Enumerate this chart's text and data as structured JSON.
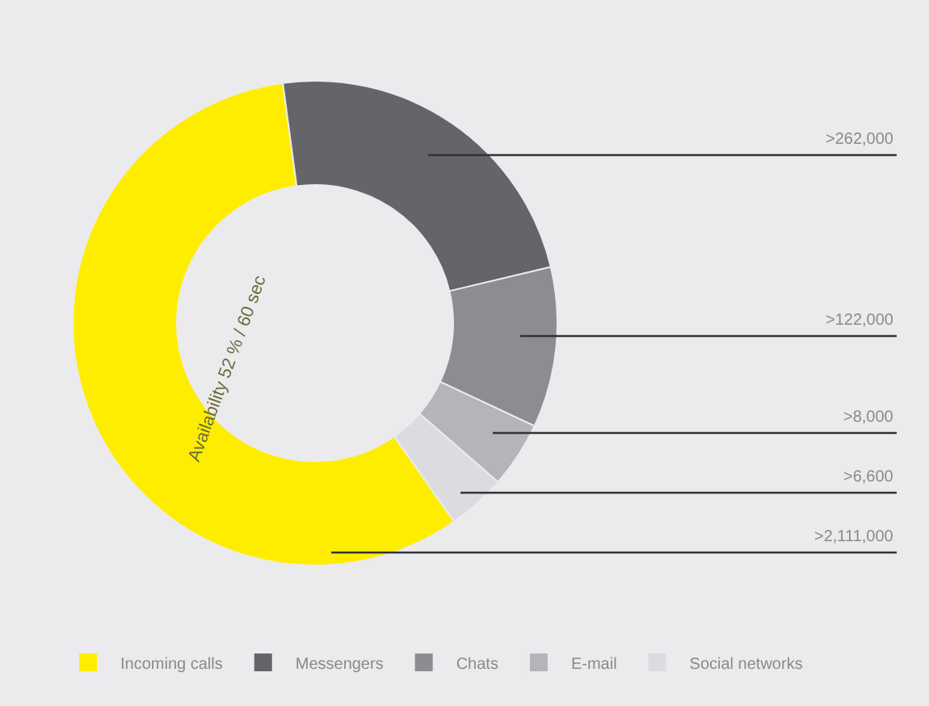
{
  "chart_data": {
    "type": "donut",
    "categories": [
      "Incoming calls",
      "Messengers",
      "Chats",
      "E-mail",
      "Social networks"
    ],
    "values": [
      57.6,
      23.4,
      10.7,
      4.4,
      3.9
    ],
    "colors": [
      "#ffed00",
      "#646469",
      "#8c8c91",
      "#b4b4b9",
      "#dcdce0"
    ],
    "value_labels": [
      ">2,111,000",
      ">262,000",
      ">122,000",
      ">8,000",
      ">6,600"
    ],
    "annotations": [
      "Availability 52 % / 60 sec"
    ],
    "legend": "bottom"
  }
}
